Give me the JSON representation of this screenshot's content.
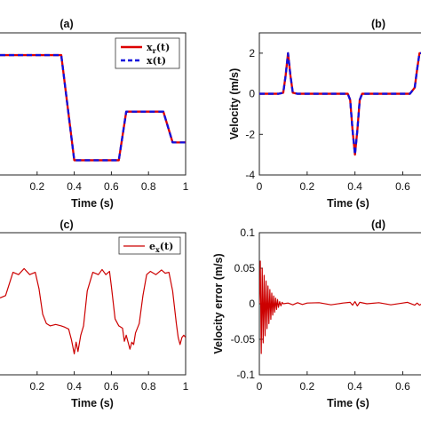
{
  "chart_data": [
    {
      "panel": "(a)",
      "type": "line",
      "title": "(a)",
      "xlabel": "Time (s)",
      "ylabel": "",
      "xlim": [
        0,
        1
      ],
      "xticks": [
        "0.2",
        "0.4",
        "0.6",
        "0.8",
        "1"
      ],
      "grid": false,
      "legend_position": "top-right",
      "series": [
        {
          "name": "x_r(t)",
          "color": "#dd0000",
          "style": "solid",
          "x": [
            0.0,
            0.2,
            0.33,
            0.4,
            0.45,
            0.5,
            0.55,
            0.6,
            0.64,
            0.68,
            0.72,
            0.78,
            0.84,
            0.88,
            0.93,
            0.97,
            1.0
          ],
          "y": [
            1.65,
            1.65,
            1.65,
            -1.42,
            -1.42,
            -1.42,
            -1.42,
            -1.42,
            -1.42,
            0.0,
            0.0,
            0.0,
            0.0,
            0.0,
            -0.9,
            -0.9,
            -0.9
          ]
        },
        {
          "name": "x(t)",
          "color": "#1010dd",
          "style": "dashed",
          "x": [
            0.0,
            0.2,
            0.33,
            0.4,
            0.45,
            0.5,
            0.55,
            0.6,
            0.64,
            0.68,
            0.72,
            0.78,
            0.84,
            0.88,
            0.93,
            0.97,
            1.0
          ],
          "y": [
            1.65,
            1.65,
            1.65,
            -1.42,
            -1.42,
            -1.42,
            -1.42,
            -1.42,
            -1.42,
            0.0,
            0.0,
            0.0,
            0.0,
            0.0,
            -0.9,
            -0.9,
            -0.9
          ]
        }
      ]
    },
    {
      "panel": "(b)",
      "type": "line",
      "title": "(b)",
      "xlabel": "Time (s)",
      "ylabel": "Velocity (m/s)",
      "xlim": [
        0,
        0.68
      ],
      "ylim": [
        -4,
        3
      ],
      "xticks": [
        "0",
        "0.2",
        "0.4",
        "0.6"
      ],
      "yticks": [
        "2",
        "0",
        "-2",
        "-4"
      ],
      "grid": false,
      "series": [
        {
          "name": "",
          "color": "#dd0000",
          "style": "solid",
          "x": [
            0.0,
            0.08,
            0.1,
            0.11,
            0.12,
            0.13,
            0.14,
            0.16,
            0.3,
            0.37,
            0.38,
            0.39,
            0.4,
            0.41,
            0.42,
            0.43,
            0.5,
            0.63,
            0.65,
            0.66,
            0.67,
            0.68
          ],
          "y": [
            0.0,
            0.0,
            0.05,
            0.9,
            2.0,
            0.9,
            0.05,
            0.0,
            0.0,
            0.0,
            -0.3,
            -1.8,
            -3.0,
            -1.8,
            -0.3,
            0.0,
            0.0,
            0.0,
            0.3,
            1.2,
            2.0,
            2.0
          ]
        },
        {
          "name": "",
          "color": "#1010dd",
          "style": "dashed",
          "x": [
            0.0,
            0.08,
            0.1,
            0.11,
            0.12,
            0.13,
            0.14,
            0.16,
            0.3,
            0.37,
            0.38,
            0.39,
            0.4,
            0.41,
            0.42,
            0.43,
            0.5,
            0.63,
            0.65,
            0.66,
            0.67,
            0.68
          ],
          "y": [
            0.0,
            0.0,
            0.05,
            0.9,
            2.0,
            0.9,
            0.05,
            0.0,
            0.0,
            0.0,
            -0.3,
            -1.8,
            -3.0,
            -1.8,
            -0.3,
            0.0,
            0.0,
            0.0,
            0.3,
            1.2,
            2.0,
            2.0
          ]
        }
      ]
    },
    {
      "panel": "(c)",
      "type": "line",
      "title": "(c)",
      "xlabel": "Time (s)",
      "ylabel": "",
      "xlim": [
        0,
        1
      ],
      "xticks": [
        "0.2",
        "0.4",
        "0.6",
        "0.8",
        "1"
      ],
      "grid": false,
      "legend_position": "top-right",
      "series": [
        {
          "name": "e_x(t)",
          "color": "#cc0000",
          "style": "solid",
          "x": [
            0.0,
            0.03,
            0.07,
            0.1,
            0.13,
            0.16,
            0.19,
            0.21,
            0.23,
            0.25,
            0.27,
            0.3,
            0.33,
            0.35,
            0.37,
            0.385,
            0.4,
            0.41,
            0.42,
            0.435,
            0.45,
            0.47,
            0.5,
            0.53,
            0.55,
            0.57,
            0.59,
            0.6,
            0.62,
            0.64,
            0.66,
            0.67,
            0.68,
            0.7,
            0.71,
            0.72,
            0.73,
            0.75,
            0.77,
            0.79,
            0.81,
            0.84,
            0.87,
            0.89,
            0.91,
            0.93,
            0.95,
            0.96,
            0.97,
            0.98,
            0.99,
            1.0
          ],
          "y": [
            0.05,
            0.1,
            0.6,
            0.55,
            0.68,
            0.55,
            0.6,
            0.25,
            -0.3,
            -0.5,
            -0.55,
            -0.52,
            -0.55,
            -0.58,
            -0.62,
            -0.85,
            -1.15,
            -0.9,
            -1.1,
            -0.75,
            -0.55,
            0.2,
            0.6,
            0.55,
            0.66,
            0.55,
            0.62,
            0.3,
            -0.4,
            -0.55,
            -0.6,
            -0.88,
            -0.75,
            -1.05,
            -0.9,
            -0.95,
            -0.7,
            -0.5,
            0.1,
            0.55,
            0.62,
            0.55,
            0.65,
            0.58,
            0.6,
            0.2,
            -0.5,
            -0.8,
            -0.95,
            -0.8,
            -0.75,
            -0.8
          ]
        }
      ]
    },
    {
      "panel": "(d)",
      "type": "line",
      "title": "(d)",
      "xlabel": "Time (s)",
      "ylabel": "Velocity error (m/s)",
      "xlim": [
        0,
        0.68
      ],
      "ylim": [
        -0.1,
        0.1
      ],
      "xticks": [
        "0",
        "0.2",
        "0.4",
        "0.6"
      ],
      "yticks": [
        "0.1",
        "0.05",
        "0",
        "-0.05",
        "-0.1"
      ],
      "grid": false,
      "series": [
        {
          "name": "",
          "color": "#cc0000",
          "style": "solid",
          "x": [
            0.0,
            0.004,
            0.008,
            0.012,
            0.016,
            0.02,
            0.024,
            0.028,
            0.032,
            0.036,
            0.04,
            0.044,
            0.048,
            0.052,
            0.056,
            0.06,
            0.064,
            0.068,
            0.072,
            0.076,
            0.08,
            0.085,
            0.09,
            0.095,
            0.1,
            0.12,
            0.14,
            0.16,
            0.18,
            0.2,
            0.25,
            0.3,
            0.35,
            0.38,
            0.39,
            0.4,
            0.41,
            0.42,
            0.45,
            0.5,
            0.55,
            0.6,
            0.62,
            0.65,
            0.66,
            0.67,
            0.68
          ],
          "y": [
            0.0,
            0.06,
            -0.07,
            0.05,
            -0.055,
            0.04,
            -0.045,
            0.032,
            -0.035,
            0.025,
            -0.028,
            0.02,
            -0.022,
            0.015,
            -0.016,
            0.011,
            -0.012,
            0.008,
            -0.008,
            0.006,
            -0.005,
            0.003,
            -0.003,
            0.002,
            0.0,
            0.001,
            -0.0015,
            0.0015,
            -0.001,
            0.001,
            0.0015,
            -0.0015,
            0.001,
            0.002,
            -0.002,
            0.003,
            -0.003,
            0.002,
            0.0,
            0.0015,
            -0.0015,
            0.001,
            0.002,
            -0.002,
            0.001,
            -0.002,
            0.0
          ]
        }
      ]
    }
  ]
}
